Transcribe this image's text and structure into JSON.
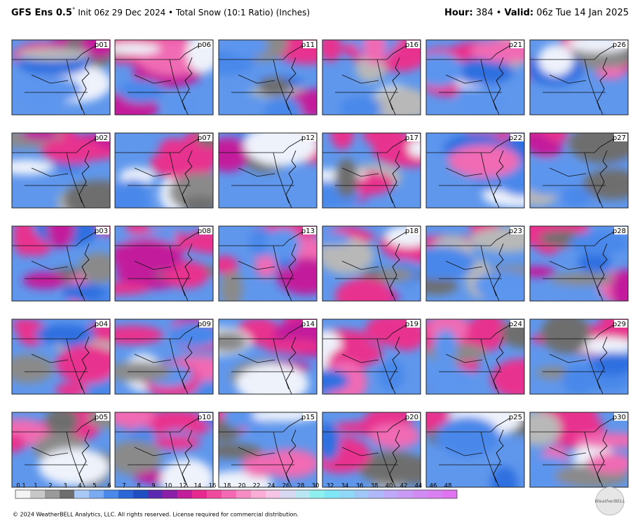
{
  "header": {
    "model": "GFS Ens 0.5",
    "degree": "°",
    "description": " Init 06z 29 Dec 2024 • Total Snow (10:1 Ratio) (Inches)",
    "hour_label": "Hour:",
    "hour": " 384 • ",
    "valid_label": "Valid:",
    "valid": " 06z Tue 14 Jan 2025"
  },
  "panels": [
    "p01",
    "p02",
    "p03",
    "p04",
    "p05",
    "p06",
    "p07",
    "p08",
    "p09",
    "p10",
    "p11",
    "p12",
    "p13",
    "p14",
    "p15",
    "p16",
    "p17",
    "p18",
    "p19",
    "p20",
    "p21",
    "p22",
    "p23",
    "p24",
    "p25",
    "p26",
    "p27",
    "p28",
    "p29",
    "p30"
  ],
  "colorbar": {
    "labels": [
      "0.1",
      "1",
      "2",
      "3",
      "4",
      "5",
      "6",
      "7",
      "8",
      "9",
      "10",
      "12",
      "14",
      "16",
      "18",
      "20",
      "22",
      "24",
      "26",
      "28",
      "30",
      "32",
      "34",
      "36",
      "38",
      "40",
      "42",
      "44",
      "46",
      "48"
    ],
    "colors": [
      "#f4f4f4",
      "#c8c8c8",
      "#9a9a9a",
      "#6e6e6e",
      "#a9c8f5",
      "#7aaaf0",
      "#4a88ea",
      "#2a66d8",
      "#1f4fc0",
      "#5a2bb0",
      "#8a1fa8",
      "#c21e9c",
      "#e6288f",
      "#f04a9f",
      "#f36ab2",
      "#f58cc4",
      "#f7add6",
      "#f5c5e6",
      "#d8d8f2",
      "#b8e6f2",
      "#8ef0ee",
      "#7fe6f5",
      "#8fd8f7",
      "#9fc8f8",
      "#afb8f8",
      "#bfa8f8",
      "#c99af6",
      "#d18cf4",
      "#d980f2",
      "#e074f0"
    ]
  },
  "footer": "© 2024 WeatherBELL Analytics, LLC. All rights reserved. License required for commercial distribution.",
  "logo": "WeatherBELL"
}
